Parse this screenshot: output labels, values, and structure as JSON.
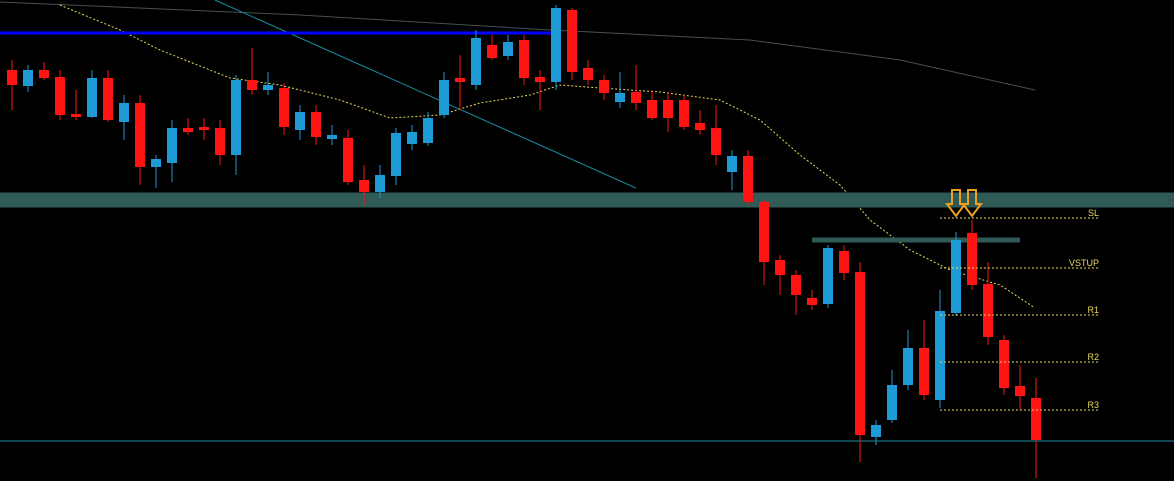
{
  "chart_data": {
    "type": "candlestick",
    "open": [
      411,
      395,
      411,
      404,
      367,
      364,
      403,
      359,
      378,
      314,
      318,
      353,
      354,
      353,
      326,
      401,
      391,
      393,
      351,
      369,
      342,
      343,
      301,
      289,
      305,
      337,
      338,
      366,
      403,
      396,
      436,
      425,
      441,
      404,
      399,
      471,
      413,
      401,
      379,
      389,
      381,
      381,
      381,
      358,
      353,
      309,
      325,
      279,
      221,
      206,
      183,
      177,
      230,
      209,
      44,
      61,
      96,
      133,
      81,
      168,
      248,
      197,
      141,
      95,
      83
    ],
    "close": [
      396,
      411,
      403,
      366,
      364,
      403,
      361,
      378,
      314,
      322,
      353,
      349,
      351,
      326,
      401,
      391,
      396,
      354,
      369,
      344,
      346,
      299,
      289,
      306,
      348,
      349,
      363,
      401,
      399,
      443,
      423,
      439,
      403,
      399,
      473,
      409,
      401,
      388,
      388,
      378,
      363,
      363,
      354,
      351,
      326,
      325,
      279,
      219,
      206,
      186,
      176,
      233,
      208,
      46,
      56,
      96,
      133,
      86,
      170,
      241,
      196,
      144,
      93,
      85,
      41
    ],
    "high": [
      421,
      416,
      419,
      411,
      391,
      411,
      411,
      386,
      386,
      326,
      361,
      363,
      363,
      361,
      406,
      433,
      409,
      398,
      376,
      376,
      356,
      351,
      316,
      316,
      353,
      356,
      369,
      409,
      426,
      451,
      446,
      446,
      446,
      411,
      476,
      473,
      421,
      406,
      409,
      416,
      391,
      389,
      386,
      371,
      376,
      331,
      331,
      281,
      226,
      211,
      191,
      236,
      236,
      219,
      61,
      111,
      151,
      161,
      191,
      249,
      261,
      219,
      146,
      116,
      103
    ],
    "low": [
      371,
      389,
      401,
      361,
      361,
      363,
      359,
      341,
      296,
      293,
      299,
      346,
      341,
      316,
      306,
      386,
      386,
      346,
      341,
      336,
      336,
      296,
      276,
      283,
      296,
      331,
      335,
      363,
      371,
      391,
      421,
      421,
      396,
      371,
      391,
      401,
      396,
      381,
      373,
      371,
      361,
      349,
      351,
      346,
      316,
      291,
      276,
      196,
      186,
      166,
      171,
      173,
      201,
      19,
      36,
      58,
      91,
      81,
      73,
      165,
      191,
      136,
      86,
      71,
      3
    ],
    "up_color": "#1e9ad6",
    "down_color": "#ff1414",
    "ylim": [
      0,
      481
    ],
    "levels": [
      {
        "label": "SL",
        "value": 263
      },
      {
        "label": "VSTUP",
        "value": 213
      },
      {
        "label": "R1",
        "value": 166
      },
      {
        "label": "R2",
        "value": 119
      },
      {
        "label": "R3",
        "value": 71
      }
    ],
    "level_color": "#e8d860",
    "lines": [
      {
        "value": 448,
        "color": "#0000ff"
      },
      {
        "value": 281,
        "color": "#2f5a56"
      },
      {
        "value": 241,
        "color": "#2f5a56"
      },
      {
        "value": 40,
        "color": "#1d8aa0"
      }
    ]
  }
}
